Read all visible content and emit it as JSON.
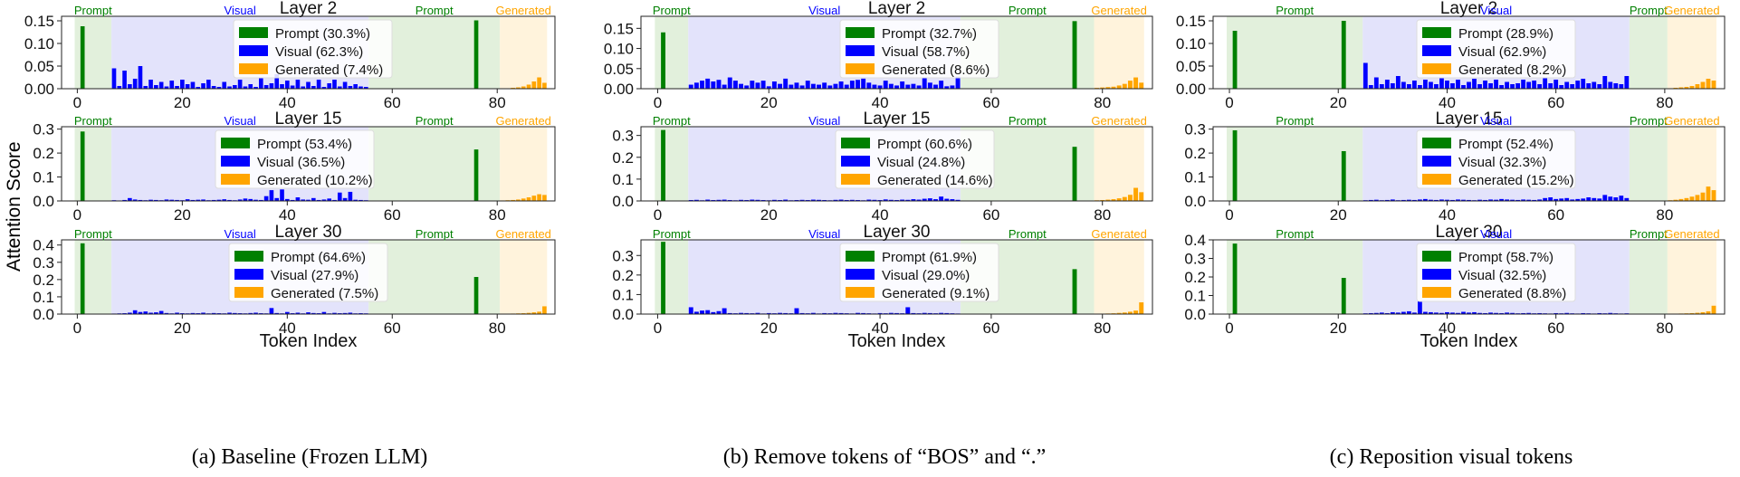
{
  "y_axis_label": "Attention Score",
  "x_axis_label": "Token Index",
  "region_labels": {
    "prompt": "Prompt",
    "visual": "Visual",
    "generated": "Generated"
  },
  "colors": {
    "prompt": "#008000",
    "visual": "#0000ff",
    "generated": "#ffa500",
    "prompt_bg": "#e2f0dc",
    "visual_bg": "#e3e3fb",
    "generated_bg": "#fff3dc"
  },
  "chart_data": [
    {
      "type": "bar",
      "panel": "a",
      "caption": "(a) Baseline (Frozen LLM)",
      "xlabel": "Token Index",
      "regions": {
        "prompt1": [
          -0.5,
          6.5
        ],
        "visual": [
          6.5,
          55.5
        ],
        "prompt2": [
          55.5,
          80.5
        ],
        "generated": [
          80.5,
          89.5
        ]
      },
      "xlim": [
        -3,
        91
      ],
      "xticks": [
        0,
        20,
        40,
        60,
        80
      ],
      "prompt_tokens": [
        1,
        76
      ],
      "layers": [
        {
          "title": "Layer 2",
          "ylim": [
            0,
            0.16
          ],
          "yticks": [
            0,
            0.05,
            0.1,
            0.15
          ],
          "ytick_labels": [
            "0.00",
            "0.05",
            "0.10",
            "0.15"
          ],
          "legend": [
            "Prompt (30.3%)",
            "Visual (62.3%)",
            "Generated (7.4%)"
          ],
          "prompt_values": [
            0.138,
            0.151
          ],
          "visual_values": [
            0.045,
            0.006,
            0.04,
            0.01,
            0.022,
            0.05,
            0.006,
            0.02,
            0.008,
            0.015,
            0.005,
            0.018,
            0.006,
            0.02,
            0.01,
            0.015,
            0.004,
            0.012,
            0.02,
            0.006,
            0.004,
            0.015,
            0.005,
            0.008,
            0.02,
            0.005,
            0.01,
            0.004,
            0.025,
            0.008,
            0.012,
            0.032,
            0.01,
            0.018,
            0.007,
            0.02,
            0.005,
            0.015,
            0.006,
            0.02,
            0.004,
            0.012,
            0.02,
            0.005,
            0.015,
            0.006,
            0.01,
            0.005,
            0.004
          ],
          "generated_values": [
            0.001,
            0.001,
            0.002,
            0.003,
            0.005,
            0.009,
            0.016,
            0.025,
            0.013
          ]
        },
        {
          "title": "Layer 15",
          "ylim": [
            0,
            0.31
          ],
          "yticks": [
            0,
            0.1,
            0.2,
            0.3
          ],
          "ytick_labels": [
            "0.0",
            "0.1",
            "0.2",
            "0.3"
          ],
          "legend": [
            "Prompt (53.4%)",
            "Visual (36.5%)",
            "Generated (10.2%)"
          ],
          "prompt_values": [
            0.29,
            0.215
          ],
          "visual_values": [
            0.003,
            0.002,
            0.004,
            0.012,
            0.006,
            0.004,
            0.003,
            0.005,
            0.004,
            0.003,
            0.006,
            0.005,
            0.004,
            0.003,
            0.007,
            0.004,
            0.005,
            0.006,
            0.003,
            0.004,
            0.005,
            0.007,
            0.004,
            0.003,
            0.006,
            0.01,
            0.008,
            0.005,
            0.004,
            0.02,
            0.045,
            0.012,
            0.048,
            0.008,
            0.004,
            0.015,
            0.006,
            0.005,
            0.012,
            0.004,
            0.006,
            0.01,
            0.004,
            0.035,
            0.012,
            0.038,
            0.005,
            0.004,
            0.003
          ],
          "generated_values": [
            0.002,
            0.003,
            0.004,
            0.006,
            0.01,
            0.015,
            0.022,
            0.028,
            0.025
          ]
        },
        {
          "title": "Layer 30",
          "ylim": [
            0,
            0.43
          ],
          "yticks": [
            0,
            0.1,
            0.2,
            0.3,
            0.4
          ],
          "ytick_labels": [
            "0.0",
            "0.1",
            "0.2",
            "0.3",
            "0.4"
          ],
          "legend": [
            "Prompt (64.6%)",
            "Visual (27.9%)",
            "Generated (7.5%)"
          ],
          "prompt_values": [
            0.41,
            0.215
          ],
          "visual_values": [
            0.003,
            0.004,
            0.005,
            0.008,
            0.022,
            0.012,
            0.015,
            0.008,
            0.01,
            0.018,
            0.006,
            0.004,
            0.008,
            0.005,
            0.004,
            0.006,
            0.005,
            0.008,
            0.004,
            0.006,
            0.005,
            0.004,
            0.008,
            0.006,
            0.005,
            0.004,
            0.006,
            0.008,
            0.005,
            0.004,
            0.035,
            0.006,
            0.004,
            0.012,
            0.005,
            0.008,
            0.004,
            0.01,
            0.006,
            0.005,
            0.012,
            0.004,
            0.007,
            0.005,
            0.006,
            0.008,
            0.004,
            0.005,
            0.004
          ],
          "generated_values": [
            0.002,
            0.002,
            0.003,
            0.004,
            0.005,
            0.007,
            0.01,
            0.014,
            0.045
          ]
        }
      ]
    },
    {
      "type": "bar",
      "panel": "b",
      "caption": "(b) Remove tokens of “BOS” and “.”",
      "xlabel": "Token Index",
      "regions": {
        "prompt1": [
          -0.5,
          5.5
        ],
        "visual": [
          5.5,
          54.5
        ],
        "prompt2": [
          54.5,
          78.5
        ],
        "generated": [
          78.5,
          87.5
        ]
      },
      "xlim": [
        -3,
        89
      ],
      "xticks": [
        0,
        20,
        40,
        60,
        80
      ],
      "prompt_tokens": [
        1,
        75
      ],
      "layers": [
        {
          "title": "Layer 2",
          "ylim": [
            0,
            0.18
          ],
          "yticks": [
            0,
            0.05,
            0.1,
            0.15
          ],
          "ytick_labels": [
            "0.00",
            "0.05",
            "0.10",
            "0.15"
          ],
          "legend": [
            "Prompt (32.7%)",
            "Visual (58.7%)",
            "Generated (8.6%)"
          ],
          "prompt_values": [
            0.14,
            0.168
          ],
          "visual_values": [
            0.01,
            0.015,
            0.02,
            0.025,
            0.018,
            0.022,
            0.01,
            0.028,
            0.02,
            0.012,
            0.008,
            0.02,
            0.015,
            0.02,
            0.006,
            0.018,
            0.012,
            0.025,
            0.01,
            0.015,
            0.008,
            0.02,
            0.012,
            0.01,
            0.015,
            0.008,
            0.012,
            0.018,
            0.01,
            0.02,
            0.022,
            0.025,
            0.015,
            0.01,
            0.008,
            0.02,
            0.012,
            0.008,
            0.018,
            0.01,
            0.012,
            0.008,
            0.028,
            0.015,
            0.01,
            0.02,
            0.006,
            0.008,
            0.03
          ],
          "generated_values": [
            0.002,
            0.003,
            0.004,
            0.005,
            0.008,
            0.012,
            0.02,
            0.028,
            0.015
          ]
        },
        {
          "title": "Layer 15",
          "ylim": [
            0,
            0.34
          ],
          "yticks": [
            0,
            0.1,
            0.2,
            0.3
          ],
          "ytick_labels": [
            "0.0",
            "0.1",
            "0.2",
            "0.3"
          ],
          "legend": [
            "Prompt (60.6%)",
            "Visual (24.8%)",
            "Generated (14.6%)"
          ],
          "prompt_values": [
            0.325,
            0.248
          ],
          "visual_values": [
            0.004,
            0.005,
            0.003,
            0.006,
            0.004,
            0.005,
            0.006,
            0.004,
            0.003,
            0.005,
            0.004,
            0.006,
            0.005,
            0.004,
            0.003,
            0.005,
            0.004,
            0.006,
            0.003,
            0.004,
            0.005,
            0.004,
            0.006,
            0.005,
            0.004,
            0.003,
            0.005,
            0.006,
            0.004,
            0.005,
            0.004,
            0.003,
            0.006,
            0.005,
            0.004,
            0.007,
            0.005,
            0.004,
            0.006,
            0.005,
            0.008,
            0.006,
            0.01,
            0.012,
            0.008,
            0.02,
            0.01,
            0.008,
            0.005
          ],
          "generated_values": [
            0.003,
            0.004,
            0.006,
            0.008,
            0.012,
            0.018,
            0.028,
            0.06,
            0.04
          ]
        },
        {
          "title": "Layer 30",
          "ylim": [
            0,
            0.38
          ],
          "yticks": [
            0,
            0.1,
            0.2,
            0.3
          ],
          "ytick_labels": [
            "0.0",
            "0.1",
            "0.2",
            "0.3"
          ],
          "legend": [
            "Prompt (61.9%)",
            "Visual (29.0%)",
            "Generated (9.1%)"
          ],
          "prompt_values": [
            0.37,
            0.23
          ],
          "visual_values": [
            0.035,
            0.012,
            0.018,
            0.02,
            0.01,
            0.015,
            0.03,
            0.005,
            0.004,
            0.006,
            0.005,
            0.004,
            0.006,
            0.003,
            0.005,
            0.004,
            0.006,
            0.005,
            0.004,
            0.03,
            0.005,
            0.004,
            0.006,
            0.003,
            0.005,
            0.004,
            0.006,
            0.005,
            0.004,
            0.003,
            0.006,
            0.005,
            0.004,
            0.003,
            0.005,
            0.004,
            0.006,
            0.005,
            0.004,
            0.035,
            0.005,
            0.004,
            0.006,
            0.005,
            0.004,
            0.006,
            0.005,
            0.004,
            0.003
          ],
          "generated_values": [
            0.002,
            0.002,
            0.003,
            0.004,
            0.006,
            0.008,
            0.012,
            0.018,
            0.06
          ]
        }
      ]
    },
    {
      "type": "bar",
      "panel": "c",
      "caption": "(c) Reposition visual tokens",
      "xlabel": "Token Index",
      "regions": {
        "prompt1": [
          -0.5,
          24.5
        ],
        "visual": [
          24.5,
          73.5
        ],
        "prompt2": [
          73.5,
          80.5
        ],
        "generated": [
          80.5,
          89.5
        ]
      },
      "xlim": [
        -3,
        91
      ],
      "xticks": [
        0,
        20,
        40,
        60,
        80
      ],
      "prompt_tokens": [
        1,
        21
      ],
      "layers": [
        {
          "title": "Layer 2",
          "ylim": [
            0,
            0.16
          ],
          "yticks": [
            0,
            0.05,
            0.1,
            0.15
          ],
          "ytick_labels": [
            "0.00",
            "0.05",
            "0.10",
            "0.15"
          ],
          "legend": [
            "Prompt (28.9%)",
            "Visual (62.9%)",
            "Generated (8.2%)"
          ],
          "prompt_values": [
            0.128,
            0.15
          ],
          "visual_values": [
            0.057,
            0.008,
            0.025,
            0.01,
            0.02,
            0.012,
            0.028,
            0.015,
            0.01,
            0.018,
            0.008,
            0.02,
            0.015,
            0.01,
            0.025,
            0.018,
            0.012,
            0.02,
            0.008,
            0.015,
            0.022,
            0.01,
            0.018,
            0.012,
            0.02,
            0.008,
            0.015,
            0.01,
            0.012,
            0.02,
            0.015,
            0.018,
            0.01,
            0.025,
            0.012,
            0.02,
            0.008,
            0.015,
            0.01,
            0.018,
            0.022,
            0.012,
            0.015,
            0.01,
            0.028,
            0.015,
            0.012,
            0.01,
            0.028
          ],
          "generated_values": [
            0.001,
            0.002,
            0.003,
            0.004,
            0.006,
            0.01,
            0.015,
            0.022,
            0.018
          ]
        },
        {
          "title": "Layer 15",
          "ylim": [
            0,
            0.31
          ],
          "yticks": [
            0,
            0.1,
            0.2,
            0.3
          ],
          "ytick_labels": [
            "0.0",
            "0.1",
            "0.2",
            "0.3"
          ],
          "legend": [
            "Prompt (52.4%)",
            "Visual (32.3%)",
            "Generated (15.2%)"
          ],
          "prompt_values": [
            0.295,
            0.208
          ],
          "visual_values": [
            0.003,
            0.004,
            0.005,
            0.003,
            0.004,
            0.006,
            0.003,
            0.004,
            0.005,
            0.004,
            0.006,
            0.008,
            0.005,
            0.004,
            0.006,
            0.005,
            0.004,
            0.006,
            0.005,
            0.004,
            0.003,
            0.005,
            0.004,
            0.006,
            0.005,
            0.008,
            0.006,
            0.005,
            0.004,
            0.006,
            0.005,
            0.004,
            0.006,
            0.012,
            0.015,
            0.008,
            0.01,
            0.012,
            0.006,
            0.008,
            0.01,
            0.015,
            0.012,
            0.01,
            0.025,
            0.018,
            0.015,
            0.022,
            0.012
          ],
          "generated_values": [
            0.003,
            0.005,
            0.008,
            0.012,
            0.018,
            0.025,
            0.035,
            0.06,
            0.045
          ]
        },
        {
          "title": "Layer 30",
          "ylim": [
            0,
            0.4
          ],
          "yticks": [
            0,
            0.1,
            0.2,
            0.3,
            0.4
          ],
          "ytick_labels": [
            "0.0",
            "0.1",
            "0.2",
            "0.3",
            "0.4"
          ],
          "legend": [
            "Prompt (58.7%)",
            "Visual (32.5%)",
            "Generated (8.8%)"
          ],
          "prompt_values": [
            0.38,
            0.195
          ],
          "visual_values": [
            0.004,
            0.005,
            0.006,
            0.008,
            0.005,
            0.01,
            0.008,
            0.012,
            0.015,
            0.008,
            0.07,
            0.012,
            0.01,
            0.008,
            0.006,
            0.01,
            0.008,
            0.006,
            0.012,
            0.008,
            0.01,
            0.006,
            0.005,
            0.008,
            0.006,
            0.005,
            0.008,
            0.006,
            0.004,
            0.005,
            0.006,
            0.004,
            0.005,
            0.004,
            0.003,
            0.005,
            0.004,
            0.006,
            0.004,
            0.003,
            0.005,
            0.004,
            0.003,
            0.005,
            0.004,
            0.006,
            0.004,
            0.003,
            0.004
          ],
          "generated_values": [
            0.002,
            0.002,
            0.003,
            0.004,
            0.005,
            0.007,
            0.01,
            0.015,
            0.045
          ]
        }
      ]
    }
  ]
}
